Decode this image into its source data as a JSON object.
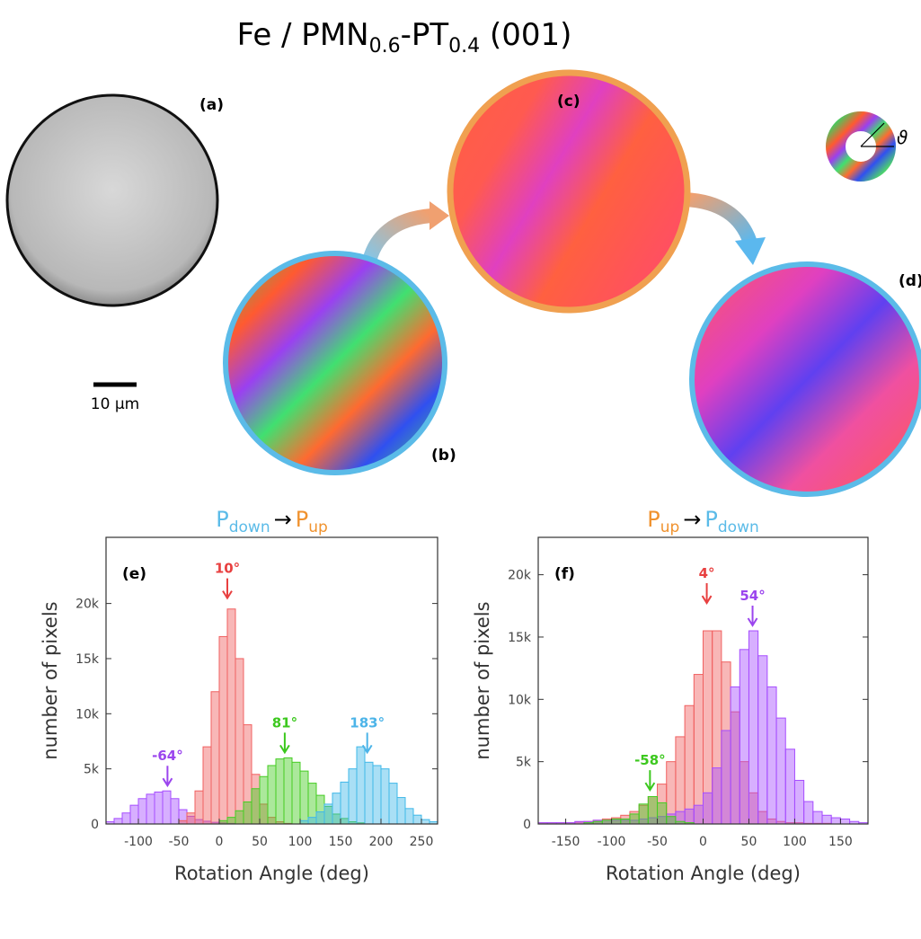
{
  "title": [
    "Fe / PMN",
    "0.6",
    "-PT",
    "0.4",
    " (001)"
  ],
  "panel_labels": [
    "(a)",
    "(b)",
    "(c)",
    "(d)"
  ],
  "scale_bar": "10 µm",
  "angle_symbol": "ϑ",
  "chart_data": [
    {
      "type": "histogram",
      "panel": "(e)",
      "title": [
        "P",
        "down",
        "→",
        "P",
        "up"
      ],
      "title_colors": [
        "#5bbbe8",
        "#5bbbe8",
        "#000000",
        "#f0922e",
        "#f0922e"
      ],
      "xlabel": "Rotation Angle (deg)",
      "ylabel": "number of pixels",
      "xlim": [
        -140,
        270
      ],
      "ylim": [
        0,
        26000
      ],
      "xticks": [
        -100,
        -50,
        0,
        50,
        100,
        150,
        200,
        250
      ],
      "yticks": [
        0,
        {
          "value": 5000,
          "label": "5k"
        },
        {
          "value": 10000,
          "label": "10k"
        },
        {
          "value": 15000,
          "label": "15k"
        },
        {
          "value": 20000,
          "label": "20k"
        }
      ],
      "bins": [
        -140,
        -130,
        -120,
        -110,
        -100,
        -90,
        -80,
        -70,
        -60,
        -50,
        -40,
        -30,
        -20,
        -10,
        0,
        10,
        20,
        30,
        40,
        50,
        60,
        70,
        80,
        90,
        100,
        110,
        120,
        130,
        140,
        150,
        160,
        170,
        180,
        190,
        200,
        210,
        220,
        230,
        240,
        250,
        260,
        270
      ],
      "series": [
        {
          "color": "#a64dff",
          "values": [
            200,
            500,
            1000,
            1700,
            2300,
            2700,
            2900,
            3000,
            2300,
            1300,
            700,
            400,
            250,
            150,
            100,
            50,
            0,
            0,
            0,
            0,
            0,
            0,
            0,
            0,
            0,
            0,
            0,
            0,
            0,
            0,
            0,
            0,
            0,
            0,
            0,
            0,
            0,
            0,
            0,
            0,
            0
          ]
        },
        {
          "color": "#f06060",
          "values": [
            0,
            0,
            0,
            0,
            0,
            0,
            0,
            0,
            0,
            300,
            1000,
            3000,
            7000,
            12000,
            17000,
            19500,
            15000,
            9000,
            4500,
            1800,
            600,
            200,
            50,
            0,
            0,
            0,
            0,
            0,
            0,
            0,
            0,
            0,
            0,
            0,
            0,
            0,
            0,
            0,
            0,
            0,
            0
          ]
        },
        {
          "color": "#44cc22",
          "values": [
            0,
            0,
            0,
            0,
            0,
            0,
            0,
            0,
            0,
            0,
            0,
            0,
            0,
            0,
            300,
            600,
            1200,
            2000,
            3200,
            4300,
            5300,
            5900,
            6000,
            5600,
            4800,
            3700,
            2600,
            1600,
            900,
            500,
            200,
            100,
            0,
            0,
            0,
            0,
            0,
            0,
            0,
            0,
            0
          ]
        },
        {
          "color": "#40b8e8",
          "values": [
            0,
            0,
            0,
            0,
            0,
            0,
            0,
            0,
            0,
            0,
            0,
            0,
            0,
            0,
            0,
            0,
            0,
            0,
            0,
            0,
            0,
            0,
            0,
            0,
            300,
            600,
            1100,
            1800,
            2800,
            3800,
            5000,
            7000,
            5600,
            5300,
            5000,
            3700,
            2400,
            1400,
            800,
            400,
            200
          ]
        }
      ],
      "annotations": [
        {
          "label": "-64°",
          "x": -64,
          "y": 3000,
          "color": "#9b45ee"
        },
        {
          "label": "10°",
          "x": 10,
          "y": 20000,
          "color": "#e84040"
        },
        {
          "label": "81°",
          "x": 81,
          "y": 6000,
          "color": "#3cc81e"
        },
        {
          "label": "183°",
          "x": 183,
          "y": 6000,
          "color": "#4cb4e8"
        }
      ]
    },
    {
      "type": "histogram",
      "panel": "(f)",
      "title": [
        "P",
        "up",
        "→",
        "P",
        "down"
      ],
      "title_colors": [
        "#f0922e",
        "#f0922e",
        "#000000",
        "#5bbbe8",
        "#5bbbe8"
      ],
      "xlabel": "Rotation Angle (deg)",
      "ylabel": "number of pixels",
      "xlim": [
        -180,
        180
      ],
      "ylim": [
        0,
        23000
      ],
      "xticks": [
        -150,
        -100,
        -50,
        0,
        50,
        100,
        150
      ],
      "yticks": [
        0,
        {
          "value": 5000,
          "label": "5k"
        },
        {
          "value": 10000,
          "label": "10k"
        },
        {
          "value": 15000,
          "label": "15k"
        },
        {
          "value": 20000,
          "label": "20k"
        }
      ],
      "bins": [
        -180,
        -170,
        -160,
        -150,
        -140,
        -130,
        -120,
        -110,
        -100,
        -90,
        -80,
        -70,
        -60,
        -50,
        -40,
        -30,
        -20,
        -10,
        0,
        10,
        20,
        30,
        40,
        50,
        60,
        70,
        80,
        90,
        100,
        110,
        120,
        130,
        140,
        150,
        160,
        170,
        180
      ],
      "series": [
        {
          "color": "#f06060",
          "values": [
            100,
            100,
            100,
            100,
            150,
            200,
            300,
            400,
            500,
            700,
            1000,
            1500,
            2200,
            3200,
            5000,
            7000,
            9500,
            12000,
            15500,
            15500,
            13000,
            9000,
            5000,
            2500,
            1000,
            400,
            200,
            100,
            100,
            50,
            50,
            50,
            0,
            0,
            0,
            0
          ]
        },
        {
          "color": "#a64dff",
          "values": [
            100,
            100,
            100,
            100,
            200,
            200,
            300,
            300,
            300,
            300,
            300,
            400,
            500,
            600,
            800,
            1000,
            1200,
            1500,
            2500,
            4500,
            7500,
            11000,
            14000,
            15500,
            13500,
            11000,
            8500,
            6000,
            3500,
            1800,
            1000,
            700,
            500,
            400,
            200,
            100
          ]
        },
        {
          "color": "#44cc22",
          "values": [
            0,
            0,
            0,
            0,
            0,
            100,
            200,
            300,
            400,
            400,
            800,
            1600,
            2200,
            1700,
            600,
            200,
            100,
            0,
            0,
            0,
            0,
            0,
            0,
            0,
            0,
            0,
            0,
            0,
            0,
            0,
            0,
            0,
            0,
            0,
            0,
            0
          ]
        }
      ],
      "annotations": [
        {
          "label": "-58°",
          "x": -58,
          "y": 2300,
          "color": "#3cc81e"
        },
        {
          "label": "4°",
          "x": 4,
          "y": 17300,
          "color": "#e84040"
        },
        {
          "label": "54°",
          "x": 54,
          "y": 15500,
          "color": "#9b45ee"
        }
      ]
    }
  ]
}
